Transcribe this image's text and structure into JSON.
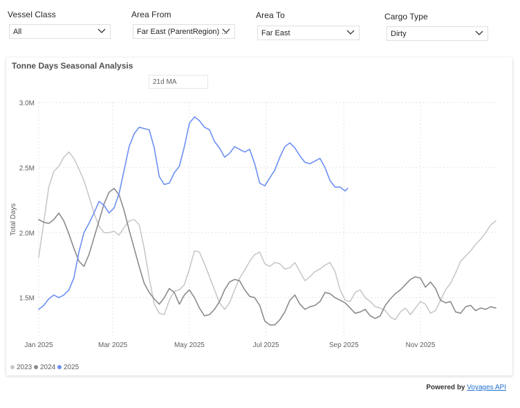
{
  "filters": [
    {
      "label": "Vessel Class",
      "value": "All"
    },
    {
      "label": "Area From",
      "value": "Far East (ParentRegion) ..."
    },
    {
      "label": "Area To",
      "value": "Far East"
    },
    {
      "label": "Cargo Type",
      "value": "Dirty"
    }
  ],
  "icons": {
    "dropdown": "chevron-down-icon"
  },
  "card": {
    "title": "Tonne Days Seasonal Analysis",
    "ma_select": "21d MA"
  },
  "footer": {
    "prefix": "Powered by",
    "link": "Voyages API"
  },
  "chart_data": {
    "type": "line",
    "title": "Tonne Days Seasonal Analysis",
    "xlabel": "",
    "ylabel": "Total Days",
    "xlim": [
      "2025-01-01",
      "2025-12-31"
    ],
    "ylim": [
      1200000,
      3000000
    ],
    "yticks": [
      {
        "value": 1500000,
        "label": "1.5M"
      },
      {
        "value": 2000000,
        "label": "2.0M"
      },
      {
        "value": 2500000,
        "label": "2.5M"
      },
      {
        "value": 3000000,
        "label": "3.0M"
      }
    ],
    "xticks": [
      {
        "date": "2025-01-01",
        "label": "Jan 2025"
      },
      {
        "date": "2025-03-01",
        "label": "Mar 2025"
      },
      {
        "date": "2025-05-01",
        "label": "May 2025"
      },
      {
        "date": "2025-07-01",
        "label": "Jul 2025"
      },
      {
        "date": "2025-09-01",
        "label": "Sep 2025"
      },
      {
        "date": "2025-11-01",
        "label": "Nov 2025"
      }
    ],
    "grid": true,
    "legend_position": "bottom-left",
    "series": [
      {
        "name": "2023",
        "color": "#c8c8c8",
        "points": [
          [
            "2025-01-01",
            1810000
          ],
          [
            "2025-01-05",
            2080000
          ],
          [
            "2025-01-09",
            2350000
          ],
          [
            "2025-01-13",
            2470000
          ],
          [
            "2025-01-17",
            2510000
          ],
          [
            "2025-01-21",
            2580000
          ],
          [
            "2025-01-25",
            2620000
          ],
          [
            "2025-01-29",
            2570000
          ],
          [
            "2025-02-02",
            2490000
          ],
          [
            "2025-02-06",
            2400000
          ],
          [
            "2025-02-10",
            2280000
          ],
          [
            "2025-02-14",
            2150000
          ],
          [
            "2025-02-18",
            2050000
          ],
          [
            "2025-02-22",
            2000000
          ],
          [
            "2025-02-26",
            2000000
          ],
          [
            "2025-03-02",
            2010000
          ],
          [
            "2025-03-06",
            1980000
          ],
          [
            "2025-03-10",
            2040000
          ],
          [
            "2025-03-14",
            2090000
          ],
          [
            "2025-03-18",
            2100000
          ],
          [
            "2025-03-22",
            2060000
          ],
          [
            "2025-03-26",
            1880000
          ],
          [
            "2025-03-30",
            1650000
          ],
          [
            "2025-04-03",
            1450000
          ],
          [
            "2025-04-07",
            1380000
          ],
          [
            "2025-04-11",
            1370000
          ],
          [
            "2025-04-15",
            1480000
          ],
          [
            "2025-04-19",
            1550000
          ],
          [
            "2025-04-23",
            1560000
          ],
          [
            "2025-04-27",
            1600000
          ],
          [
            "2025-05-01",
            1720000
          ],
          [
            "2025-05-05",
            1860000
          ],
          [
            "2025-05-09",
            1850000
          ],
          [
            "2025-05-13",
            1760000
          ],
          [
            "2025-05-17",
            1660000
          ],
          [
            "2025-05-21",
            1560000
          ],
          [
            "2025-05-25",
            1460000
          ],
          [
            "2025-05-29",
            1410000
          ],
          [
            "2025-06-02",
            1460000
          ],
          [
            "2025-06-06",
            1560000
          ],
          [
            "2025-06-10",
            1650000
          ],
          [
            "2025-06-14",
            1710000
          ],
          [
            "2025-06-18",
            1780000
          ],
          [
            "2025-06-22",
            1830000
          ],
          [
            "2025-06-26",
            1850000
          ],
          [
            "2025-06-30",
            1760000
          ],
          [
            "2025-07-04",
            1740000
          ],
          [
            "2025-07-08",
            1770000
          ],
          [
            "2025-07-12",
            1760000
          ],
          [
            "2025-07-16",
            1720000
          ],
          [
            "2025-07-20",
            1730000
          ],
          [
            "2025-07-24",
            1770000
          ],
          [
            "2025-07-28",
            1700000
          ],
          [
            "2025-08-01",
            1630000
          ],
          [
            "2025-08-05",
            1660000
          ],
          [
            "2025-08-09",
            1700000
          ],
          [
            "2025-08-13",
            1720000
          ],
          [
            "2025-08-17",
            1750000
          ],
          [
            "2025-08-21",
            1770000
          ],
          [
            "2025-08-25",
            1700000
          ],
          [
            "2025-08-29",
            1560000
          ],
          [
            "2025-09-02",
            1480000
          ],
          [
            "2025-09-06",
            1470000
          ],
          [
            "2025-09-10",
            1540000
          ],
          [
            "2025-09-14",
            1560000
          ],
          [
            "2025-09-18",
            1500000
          ],
          [
            "2025-09-22",
            1470000
          ],
          [
            "2025-09-26",
            1430000
          ],
          [
            "2025-09-30",
            1420000
          ],
          [
            "2025-10-04",
            1400000
          ],
          [
            "2025-10-08",
            1350000
          ],
          [
            "2025-10-12",
            1330000
          ],
          [
            "2025-10-16",
            1390000
          ],
          [
            "2025-10-20",
            1420000
          ],
          [
            "2025-10-24",
            1370000
          ],
          [
            "2025-10-28",
            1420000
          ],
          [
            "2025-11-01",
            1470000
          ],
          [
            "2025-11-05",
            1450000
          ],
          [
            "2025-11-09",
            1380000
          ],
          [
            "2025-11-13",
            1400000
          ],
          [
            "2025-11-17",
            1480000
          ],
          [
            "2025-11-21",
            1560000
          ],
          [
            "2025-11-25",
            1610000
          ],
          [
            "2025-11-29",
            1690000
          ],
          [
            "2025-12-03",
            1780000
          ],
          [
            "2025-12-07",
            1820000
          ],
          [
            "2025-12-11",
            1860000
          ],
          [
            "2025-12-15",
            1910000
          ],
          [
            "2025-12-19",
            1950000
          ],
          [
            "2025-12-23",
            2000000
          ],
          [
            "2025-12-27",
            2060000
          ],
          [
            "2025-12-31",
            2090000
          ]
        ]
      },
      {
        "name": "2024",
        "color": "#8a8a8a",
        "points": [
          [
            "2025-01-01",
            2100000
          ],
          [
            "2025-01-05",
            2080000
          ],
          [
            "2025-01-09",
            2070000
          ],
          [
            "2025-01-13",
            2100000
          ],
          [
            "2025-01-17",
            2150000
          ],
          [
            "2025-01-21",
            2090000
          ],
          [
            "2025-01-25",
            1990000
          ],
          [
            "2025-01-29",
            1880000
          ],
          [
            "2025-02-02",
            1780000
          ],
          [
            "2025-02-06",
            1740000
          ],
          [
            "2025-02-10",
            1830000
          ],
          [
            "2025-02-14",
            1960000
          ],
          [
            "2025-02-18",
            2090000
          ],
          [
            "2025-02-22",
            2220000
          ],
          [
            "2025-02-26",
            2310000
          ],
          [
            "2025-03-02",
            2340000
          ],
          [
            "2025-03-06",
            2290000
          ],
          [
            "2025-03-10",
            2170000
          ],
          [
            "2025-03-14",
            2020000
          ],
          [
            "2025-03-18",
            1880000
          ],
          [
            "2025-03-22",
            1740000
          ],
          [
            "2025-03-26",
            1610000
          ],
          [
            "2025-03-30",
            1540000
          ],
          [
            "2025-04-03",
            1490000
          ],
          [
            "2025-04-07",
            1450000
          ],
          [
            "2025-04-11",
            1500000
          ],
          [
            "2025-04-15",
            1570000
          ],
          [
            "2025-04-19",
            1540000
          ],
          [
            "2025-04-23",
            1450000
          ],
          [
            "2025-04-27",
            1520000
          ],
          [
            "2025-05-01",
            1560000
          ],
          [
            "2025-05-05",
            1500000
          ],
          [
            "2025-05-09",
            1420000
          ],
          [
            "2025-05-13",
            1360000
          ],
          [
            "2025-05-17",
            1370000
          ],
          [
            "2025-05-21",
            1410000
          ],
          [
            "2025-05-25",
            1470000
          ],
          [
            "2025-05-29",
            1560000
          ],
          [
            "2025-06-02",
            1620000
          ],
          [
            "2025-06-06",
            1640000
          ],
          [
            "2025-06-10",
            1630000
          ],
          [
            "2025-06-14",
            1560000
          ],
          [
            "2025-06-18",
            1510000
          ],
          [
            "2025-06-22",
            1500000
          ],
          [
            "2025-06-26",
            1440000
          ],
          [
            "2025-06-30",
            1320000
          ],
          [
            "2025-07-04",
            1290000
          ],
          [
            "2025-07-08",
            1290000
          ],
          [
            "2025-07-12",
            1330000
          ],
          [
            "2025-07-16",
            1390000
          ],
          [
            "2025-07-20",
            1480000
          ],
          [
            "2025-07-24",
            1520000
          ],
          [
            "2025-07-28",
            1450000
          ],
          [
            "2025-08-01",
            1410000
          ],
          [
            "2025-08-05",
            1430000
          ],
          [
            "2025-08-09",
            1440000
          ],
          [
            "2025-08-13",
            1470000
          ],
          [
            "2025-08-17",
            1540000
          ],
          [
            "2025-08-21",
            1530000
          ],
          [
            "2025-08-25",
            1500000
          ],
          [
            "2025-08-29",
            1480000
          ],
          [
            "2025-09-02",
            1460000
          ],
          [
            "2025-09-06",
            1420000
          ],
          [
            "2025-09-10",
            1380000
          ],
          [
            "2025-09-14",
            1390000
          ],
          [
            "2025-09-18",
            1410000
          ],
          [
            "2025-09-22",
            1360000
          ],
          [
            "2025-09-26",
            1340000
          ],
          [
            "2025-09-30",
            1360000
          ],
          [
            "2025-10-04",
            1440000
          ],
          [
            "2025-10-08",
            1490000
          ],
          [
            "2025-10-12",
            1530000
          ],
          [
            "2025-10-16",
            1560000
          ],
          [
            "2025-10-20",
            1600000
          ],
          [
            "2025-10-24",
            1640000
          ],
          [
            "2025-10-28",
            1660000
          ],
          [
            "2025-11-01",
            1650000
          ],
          [
            "2025-11-05",
            1580000
          ],
          [
            "2025-11-09",
            1620000
          ],
          [
            "2025-11-13",
            1570000
          ],
          [
            "2025-11-17",
            1480000
          ],
          [
            "2025-11-21",
            1460000
          ],
          [
            "2025-11-25",
            1470000
          ],
          [
            "2025-11-29",
            1390000
          ],
          [
            "2025-12-03",
            1380000
          ],
          [
            "2025-12-07",
            1430000
          ],
          [
            "2025-12-11",
            1440000
          ],
          [
            "2025-12-15",
            1400000
          ],
          [
            "2025-12-19",
            1420000
          ],
          [
            "2025-12-23",
            1410000
          ],
          [
            "2025-12-27",
            1430000
          ],
          [
            "2025-12-31",
            1420000
          ]
        ]
      },
      {
        "name": "2025",
        "color": "#6b8ff2",
        "points": [
          [
            "2025-01-01",
            1410000
          ],
          [
            "2025-01-05",
            1440000
          ],
          [
            "2025-01-09",
            1490000
          ],
          [
            "2025-01-13",
            1520000
          ],
          [
            "2025-01-17",
            1500000
          ],
          [
            "2025-01-21",
            1520000
          ],
          [
            "2025-01-25",
            1560000
          ],
          [
            "2025-01-29",
            1650000
          ],
          [
            "2025-02-02",
            1850000
          ],
          [
            "2025-02-06",
            2000000
          ],
          [
            "2025-02-10",
            2070000
          ],
          [
            "2025-02-14",
            2150000
          ],
          [
            "2025-02-18",
            2240000
          ],
          [
            "2025-02-22",
            2210000
          ],
          [
            "2025-02-26",
            2150000
          ],
          [
            "2025-03-02",
            2190000
          ],
          [
            "2025-03-06",
            2300000
          ],
          [
            "2025-03-10",
            2480000
          ],
          [
            "2025-03-14",
            2660000
          ],
          [
            "2025-03-18",
            2760000
          ],
          [
            "2025-03-22",
            2810000
          ],
          [
            "2025-03-26",
            2800000
          ],
          [
            "2025-03-30",
            2790000
          ],
          [
            "2025-04-03",
            2650000
          ],
          [
            "2025-04-07",
            2430000
          ],
          [
            "2025-04-11",
            2370000
          ],
          [
            "2025-04-15",
            2380000
          ],
          [
            "2025-04-19",
            2460000
          ],
          [
            "2025-04-23",
            2510000
          ],
          [
            "2025-04-27",
            2660000
          ],
          [
            "2025-05-01",
            2840000
          ],
          [
            "2025-05-05",
            2890000
          ],
          [
            "2025-05-09",
            2860000
          ],
          [
            "2025-05-13",
            2810000
          ],
          [
            "2025-05-17",
            2790000
          ],
          [
            "2025-05-21",
            2700000
          ],
          [
            "2025-05-25",
            2650000
          ],
          [
            "2025-05-29",
            2580000
          ],
          [
            "2025-06-02",
            2610000
          ],
          [
            "2025-06-06",
            2660000
          ],
          [
            "2025-06-10",
            2640000
          ],
          [
            "2025-06-14",
            2620000
          ],
          [
            "2025-06-18",
            2640000
          ],
          [
            "2025-06-22",
            2530000
          ],
          [
            "2025-06-26",
            2380000
          ],
          [
            "2025-06-30",
            2360000
          ],
          [
            "2025-07-04",
            2420000
          ],
          [
            "2025-07-08",
            2480000
          ],
          [
            "2025-07-12",
            2580000
          ],
          [
            "2025-07-16",
            2660000
          ],
          [
            "2025-07-20",
            2690000
          ],
          [
            "2025-07-24",
            2650000
          ],
          [
            "2025-07-28",
            2590000
          ],
          [
            "2025-08-01",
            2540000
          ],
          [
            "2025-08-05",
            2530000
          ],
          [
            "2025-08-09",
            2550000
          ],
          [
            "2025-08-13",
            2570000
          ],
          [
            "2025-08-17",
            2500000
          ],
          [
            "2025-08-21",
            2400000
          ],
          [
            "2025-08-25",
            2350000
          ],
          [
            "2025-08-29",
            2350000
          ],
          [
            "2025-09-02",
            2320000
          ],
          [
            "2025-09-04",
            2340000
          ]
        ]
      }
    ]
  }
}
